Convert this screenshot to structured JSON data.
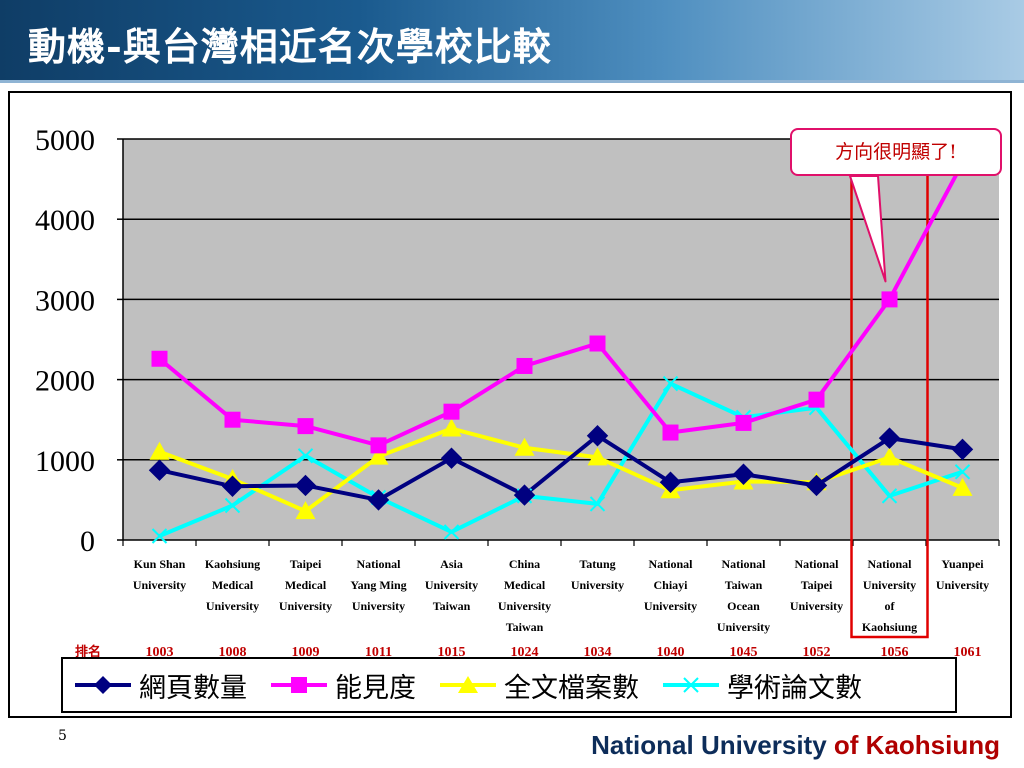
{
  "title": "動機-與台灣相近名次學校比較",
  "callout": "方向很明顯了!",
  "page_number": "5",
  "footer": {
    "main": "National University",
    "accent": "of Kaohsiung"
  },
  "colors": {
    "header_dark": "#0f3d66",
    "plot_bg": "#c0c0c0",
    "highlight": "#e00000",
    "rank_text": "#c00000",
    "series": [
      "#000080",
      "#ff00ff",
      "#ffff00",
      "#00ffff"
    ]
  },
  "chart_data": {
    "type": "line",
    "y_ticks": [
      "5000",
      "4000",
      "3000",
      "2000",
      "1000",
      "0"
    ],
    "ylim": [
      0,
      5000
    ],
    "grid": true,
    "legend_position": "bottom",
    "categories": [
      [
        "Kun Shan",
        "University"
      ],
      [
        "Kaohsiung",
        "Medical",
        "University"
      ],
      [
        "Taipei",
        "Medical",
        "University"
      ],
      [
        "National",
        "Yang Ming",
        "University"
      ],
      [
        "Asia",
        "University",
        "Taiwan"
      ],
      [
        "China",
        "Medical",
        "University",
        "Taiwan"
      ],
      [
        "Tatung",
        "University"
      ],
      [
        "National",
        "Chiayi",
        "University"
      ],
      [
        "National",
        "Taiwan",
        "Ocean",
        "University"
      ],
      [
        "National",
        "Taipei",
        "University"
      ],
      [
        "National",
        "University",
        "of",
        "Kaohsiung"
      ],
      [
        "Yuanpei",
        "University"
      ]
    ],
    "rank_label": "排名",
    "ranks": [
      "1003",
      "1008",
      "1009",
      "1011",
      "1015",
      "1024",
      "1034",
      "1040",
      "1045",
      "1052",
      "1056",
      "1061"
    ],
    "highlight_category_index": 10,
    "series": [
      {
        "name": "網頁數量",
        "marker": "diamond",
        "values": [
          870,
          670,
          680,
          500,
          1020,
          560,
          1300,
          720,
          820,
          680,
          1270,
          1130
        ]
      },
      {
        "name": "能見度",
        "marker": "square",
        "values": [
          2260,
          1500,
          1420,
          1180,
          1600,
          2170,
          2450,
          1340,
          1460,
          1750,
          3000,
          4700
        ]
      },
      {
        "name": "全文檔案數",
        "marker": "triangle",
        "values": [
          1100,
          760,
          360,
          1040,
          1390,
          1150,
          1030,
          620,
          730,
          720,
          1030,
          650
        ]
      },
      {
        "name": "學術論文數",
        "marker": "x",
        "values": [
          50,
          430,
          1050,
          530,
          100,
          550,
          450,
          1950,
          1530,
          1650,
          550,
          850
        ]
      }
    ]
  }
}
